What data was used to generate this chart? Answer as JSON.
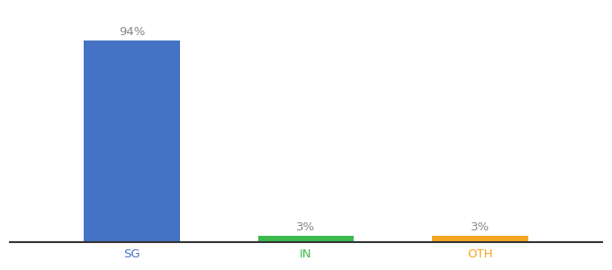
{
  "categories": [
    "SG",
    "IN",
    "OTH"
  ],
  "values": [
    94,
    3,
    3
  ],
  "bar_colors": [
    "#4472c4",
    "#3dba4e",
    "#f5a623"
  ],
  "label_colors": [
    "#4472c4",
    "#3dba4e",
    "#f5a623"
  ],
  "value_labels": [
    "94%",
    "3%",
    "3%"
  ],
  "background_color": "#ffffff",
  "bar_width": 0.55,
  "ylim": [
    0,
    108
  ],
  "xlim": [
    -0.7,
    2.7
  ],
  "figsize": [
    6.8,
    3.0
  ],
  "dpi": 100,
  "label_fontsize": 9.5,
  "tick_fontsize": 9.5,
  "value_label_color": "#888888",
  "spine_color": "#333333",
  "spine_linewidth": 1.5
}
